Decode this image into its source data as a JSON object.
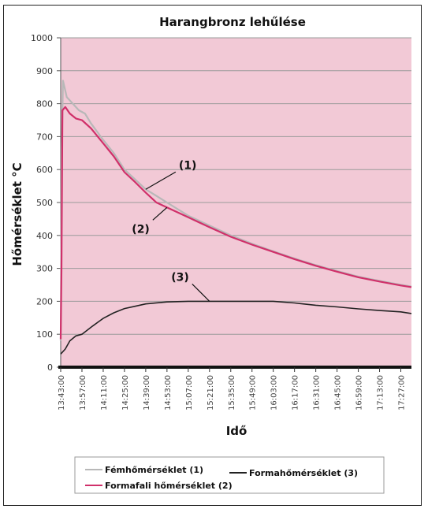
{
  "chart_data": {
    "type": "line",
    "title": "Harangbronz lehűlése",
    "xlabel": "Idő",
    "ylabel": "Hőmérséklet °C",
    "ylim": [
      0,
      1000
    ],
    "yticks": [
      0,
      100,
      200,
      300,
      400,
      500,
      600,
      700,
      800,
      900,
      1000
    ],
    "grid": true,
    "legend_position": "bottom",
    "plot_background": "#f2c9d6",
    "x_categories": [
      "13:43:00",
      "13:57:00",
      "14:11:00",
      "14:25:00",
      "14:39:00",
      "14:53:00",
      "15:07:00",
      "15:21:00",
      "15:35:00",
      "15:49:00",
      "16:03:00",
      "16:17:00",
      "16:31:00",
      "16:45:00",
      "16:59:00",
      "17:13:00",
      "17:27:00"
    ],
    "x_range": [
      "13:43:00",
      "17:34:00"
    ],
    "series": [
      {
        "name": "Fémhőmérséklet (1)",
        "color": "#b8b8b8",
        "points": [
          [
            "13:43:00",
            80
          ],
          [
            "13:43:40",
            660
          ],
          [
            "13:44:30",
            870
          ],
          [
            "13:47:00",
            820
          ],
          [
            "13:51:00",
            800
          ],
          [
            "13:55:00",
            780
          ],
          [
            "13:59:00",
            770
          ],
          [
            "14:03:00",
            740
          ],
          [
            "14:11:00",
            690
          ],
          [
            "14:18:00",
            650
          ],
          [
            "14:25:00",
            600
          ],
          [
            "14:32:00",
            570
          ],
          [
            "14:39:00",
            540
          ],
          [
            "14:46:00",
            520
          ],
          [
            "14:53:00",
            500
          ],
          [
            "15:07:00",
            460
          ],
          [
            "15:21:00",
            430
          ],
          [
            "15:35:00",
            400
          ],
          [
            "15:49:00",
            375
          ],
          [
            "16:03:00",
            352
          ],
          [
            "16:17:00",
            330
          ],
          [
            "16:31:00",
            310
          ],
          [
            "16:45:00",
            292
          ],
          [
            "16:59:00",
            275
          ],
          [
            "17:13:00",
            262
          ],
          [
            "17:27:00",
            250
          ],
          [
            "17:34:00",
            245
          ]
        ]
      },
      {
        "name": "Formafali hőmérséklet (2)",
        "color": "#d0306a",
        "points": [
          [
            "13:43:00",
            85
          ],
          [
            "13:43:30",
            300
          ],
          [
            "13:44:10",
            780
          ],
          [
            "13:46:00",
            790
          ],
          [
            "13:49:00",
            770
          ],
          [
            "13:53:00",
            755
          ],
          [
            "13:57:00",
            750
          ],
          [
            "14:03:00",
            725
          ],
          [
            "14:11:00",
            680
          ],
          [
            "14:18:00",
            640
          ],
          [
            "14:25:00",
            592
          ],
          [
            "14:32:00",
            562
          ],
          [
            "14:39:00",
            530
          ],
          [
            "14:46:00",
            500
          ],
          [
            "14:53:00",
            485
          ],
          [
            "15:07:00",
            455
          ],
          [
            "15:21:00",
            425
          ],
          [
            "15:35:00",
            396
          ],
          [
            "15:49:00",
            372
          ],
          [
            "16:03:00",
            350
          ],
          [
            "16:17:00",
            328
          ],
          [
            "16:31:00",
            308
          ],
          [
            "16:45:00",
            290
          ],
          [
            "16:59:00",
            273
          ],
          [
            "17:13:00",
            260
          ],
          [
            "17:27:00",
            248
          ],
          [
            "17:34:00",
            243
          ]
        ]
      },
      {
        "name": "Formahőmérséklet (3)",
        "color": "#222222",
        "points": [
          [
            "13:43:00",
            40
          ],
          [
            "13:46:00",
            55
          ],
          [
            "13:49:00",
            80
          ],
          [
            "13:53:00",
            95
          ],
          [
            "13:57:00",
            100
          ],
          [
            "14:04:00",
            125
          ],
          [
            "14:11:00",
            148
          ],
          [
            "14:18:00",
            165
          ],
          [
            "14:25:00",
            178
          ],
          [
            "14:32:00",
            185
          ],
          [
            "14:39:00",
            192
          ],
          [
            "14:53:00",
            198
          ],
          [
            "15:07:00",
            200
          ],
          [
            "15:21:00",
            200
          ],
          [
            "15:49:00",
            200
          ],
          [
            "16:03:00",
            200
          ],
          [
            "16:17:00",
            195
          ],
          [
            "16:31:00",
            188
          ],
          [
            "16:45:00",
            183
          ],
          [
            "16:59:00",
            177
          ],
          [
            "17:13:00",
            172
          ],
          [
            "17:27:00",
            168
          ],
          [
            "17:34:00",
            163
          ]
        ]
      }
    ],
    "annotations": [
      {
        "text": "(1)",
        "series": 0,
        "at": "14:39:00"
      },
      {
        "text": "(2)",
        "series": 1,
        "at": "14:53:00"
      },
      {
        "text": "(3)",
        "series": 2,
        "at": "15:21:00"
      }
    ]
  }
}
